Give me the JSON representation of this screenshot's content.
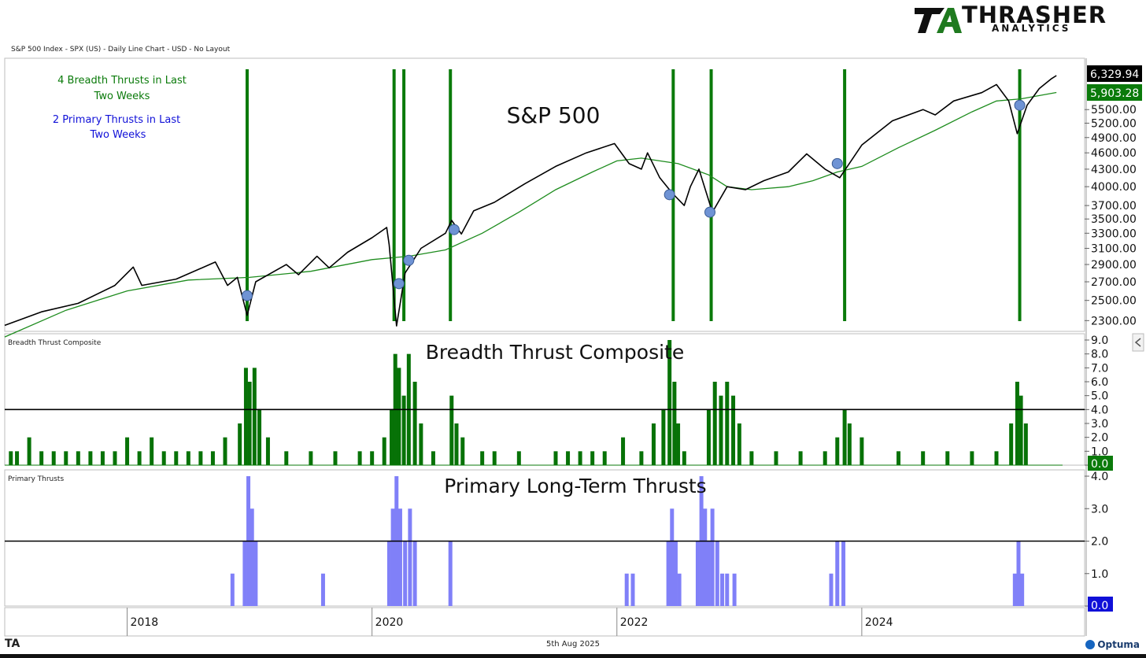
{
  "branding": {
    "logo_letters": "TA",
    "name": "THRASHER",
    "subtitle": "ANALYTICS",
    "footer_logo": "TA",
    "software": "Optuma"
  },
  "header": {
    "chart_info": "S&P 500 Index - SPX (US) - Daily Line Chart - USD - No Layout"
  },
  "footer": {
    "date": "5th Aug 2025"
  },
  "colors": {
    "price": "#000000",
    "ma": "#1e8c1e",
    "thrust_bar": "#077207",
    "signal": "#0a7a0a",
    "primary": "#8080f8",
    "primary_label": "#1010d8",
    "marker": "#6f93d4"
  },
  "chart_data": [
    {
      "type": "line",
      "title": "S&P 500",
      "panel_label": "",
      "annotations": [
        {
          "text": "4 Breadth Thrusts in Last Two Weeks",
          "lines": [
            "4 Breadth Thrusts in Last",
            "Two Weeks"
          ],
          "color": "#0a7a0a"
        },
        {
          "text": "2 Primary Thrusts in Last Two Weeks",
          "lines": [
            "2 Primary Thrusts in Last",
            "Two Weeks"
          ],
          "color": "#1010d8"
        }
      ],
      "series": [
        {
          "name": "S&P 500",
          "color": "#000000",
          "points": [
            [
              2017.0,
              2255
            ],
            [
              2017.3,
              2385
            ],
            [
              2017.6,
              2470
            ],
            [
              2017.9,
              2660
            ],
            [
              2018.05,
              2870
            ],
            [
              2018.12,
              2660
            ],
            [
              2018.4,
              2730
            ],
            [
              2018.72,
              2930
            ],
            [
              2018.82,
              2660
            ],
            [
              2018.9,
              2750
            ],
            [
              2018.98,
              2350
            ],
            [
              2019.05,
              2700
            ],
            [
              2019.3,
              2900
            ],
            [
              2019.4,
              2780
            ],
            [
              2019.55,
              3000
            ],
            [
              2019.65,
              2860
            ],
            [
              2019.8,
              3050
            ],
            [
              2020.0,
              3240
            ],
            [
              2020.12,
              3380
            ],
            [
              2020.14,
              3150
            ],
            [
              2020.2,
              2250
            ],
            [
              2020.27,
              2800
            ],
            [
              2020.4,
              3100
            ],
            [
              2020.6,
              3300
            ],
            [
              2020.65,
              3480
            ],
            [
              2020.73,
              3290
            ],
            [
              2020.83,
              3620
            ],
            [
              2021.0,
              3750
            ],
            [
              2021.25,
              4050
            ],
            [
              2021.5,
              4350
            ],
            [
              2021.75,
              4600
            ],
            [
              2021.98,
              4780
            ],
            [
              2022.1,
              4400
            ],
            [
              2022.2,
              4300
            ],
            [
              2022.25,
              4600
            ],
            [
              2022.35,
              4150
            ],
            [
              2022.45,
              3900
            ],
            [
              2022.55,
              3700
            ],
            [
              2022.6,
              4000
            ],
            [
              2022.67,
              4300
            ],
            [
              2022.78,
              3600
            ],
            [
              2022.9,
              4000
            ],
            [
              2023.05,
              3950
            ],
            [
              2023.2,
              4100
            ],
            [
              2023.4,
              4250
            ],
            [
              2023.55,
              4580
            ],
            [
              2023.7,
              4300
            ],
            [
              2023.82,
              4150
            ],
            [
              2024.0,
              4750
            ],
            [
              2024.25,
              5250
            ],
            [
              2024.5,
              5500
            ],
            [
              2024.6,
              5380
            ],
            [
              2024.75,
              5700
            ],
            [
              2024.98,
              5900
            ],
            [
              2025.1,
              6100
            ],
            [
              2025.2,
              5700
            ],
            [
              2025.27,
              4980
            ],
            [
              2025.35,
              5600
            ],
            [
              2025.45,
              6000
            ],
            [
              2025.55,
              6250
            ],
            [
              2025.59,
              6329.94
            ]
          ]
        },
        {
          "name": "Moving Average",
          "color": "#1e8c1e",
          "points": [
            [
              2017.0,
              2150
            ],
            [
              2017.5,
              2400
            ],
            [
              2018.0,
              2600
            ],
            [
              2018.5,
              2720
            ],
            [
              2019.0,
              2750
            ],
            [
              2019.5,
              2820
            ],
            [
              2020.0,
              2960
            ],
            [
              2020.3,
              3000
            ],
            [
              2020.6,
              3080
            ],
            [
              2020.9,
              3300
            ],
            [
              2021.2,
              3600
            ],
            [
              2021.5,
              3950
            ],
            [
              2021.8,
              4250
            ],
            [
              2022.0,
              4450
            ],
            [
              2022.2,
              4500
            ],
            [
              2022.5,
              4400
            ],
            [
              2022.75,
              4200
            ],
            [
              2022.9,
              4000
            ],
            [
              2023.1,
              3950
            ],
            [
              2023.4,
              4000
            ],
            [
              2023.6,
              4100
            ],
            [
              2023.8,
              4250
            ],
            [
              2024.0,
              4350
            ],
            [
              2024.3,
              4700
            ],
            [
              2024.6,
              5050
            ],
            [
              2024.9,
              5450
            ],
            [
              2025.1,
              5700
            ],
            [
              2025.3,
              5750
            ],
            [
              2025.59,
              5903.28
            ]
          ]
        }
      ],
      "signal_lines_x": [
        2018.98,
        2020.18,
        2020.26,
        2020.64,
        2022.46,
        2022.77,
        2023.86,
        2025.29
      ],
      "markers": [
        [
          2018.98,
          2550
        ],
        [
          2020.22,
          2680
        ],
        [
          2020.3,
          2950
        ],
        [
          2020.67,
          3350
        ],
        [
          2022.43,
          3870
        ],
        [
          2022.76,
          3600
        ],
        [
          2023.8,
          4400
        ],
        [
          2025.29,
          5600
        ]
      ],
      "last_value_labels": [
        "6,329.94",
        "5,903.28"
      ],
      "ytick_labels": [
        "2300.00",
        "2500.00",
        "2700.00",
        "2900.00",
        "3100.00",
        "3300.00",
        "3500.00",
        "3700.00",
        "4000.00",
        "4300.00",
        "4600.00",
        "4900.00",
        "5200.00",
        "5500.00"
      ],
      "yticks": [
        2300,
        2500,
        2700,
        2900,
        3100,
        3300,
        3500,
        3700,
        4000,
        4300,
        4600,
        4900,
        5200,
        5500
      ],
      "ylim": [
        2200,
        6800
      ],
      "scale": "log"
    },
    {
      "type": "bar",
      "title": "Breadth Thrust Composite",
      "panel_label": "Breadth Thrust Composite",
      "color": "#077207",
      "threshold": 4.0,
      "ylim": [
        0,
        9
      ],
      "yticks": [
        0,
        1,
        2,
        3,
        4,
        5,
        6,
        7,
        8,
        9
      ],
      "ytick_labels": [
        "0.0",
        "1.0",
        "2.0",
        "3.0",
        "4.0",
        "5.0",
        "6.0",
        "7.0",
        "8.0",
        "9.0"
      ],
      "last_value_label": "0.0",
      "x": [
        2017.05,
        2017.1,
        2017.2,
        2017.3,
        2017.4,
        2017.5,
        2017.6,
        2017.7,
        2017.8,
        2017.9,
        2018.0,
        2018.1,
        2018.2,
        2018.3,
        2018.4,
        2018.5,
        2018.6,
        2018.7,
        2018.8,
        2018.92,
        2018.97,
        2019.0,
        2019.04,
        2019.08,
        2019.15,
        2019.3,
        2019.5,
        2019.7,
        2019.9,
        2020.0,
        2020.1,
        2020.16,
        2020.19,
        2020.22,
        2020.26,
        2020.3,
        2020.35,
        2020.4,
        2020.5,
        2020.65,
        2020.69,
        2020.74,
        2020.9,
        2021.0,
        2021.2,
        2021.5,
        2021.6,
        2021.7,
        2021.8,
        2021.9,
        2022.05,
        2022.2,
        2022.3,
        2022.38,
        2022.43,
        2022.47,
        2022.5,
        2022.55,
        2022.75,
        2022.8,
        2022.85,
        2022.9,
        2022.95,
        2023.0,
        2023.1,
        2023.3,
        2023.5,
        2023.7,
        2023.8,
        2023.86,
        2023.9,
        2024.0,
        2024.3,
        2024.5,
        2024.7,
        2024.9,
        2025.1,
        2025.22,
        2025.27,
        2025.3,
        2025.34
      ],
      "values": [
        1,
        1,
        2,
        1,
        1,
        1,
        1,
        1,
        1,
        1,
        2,
        1,
        2,
        1,
        1,
        1,
        1,
        1,
        2,
        3,
        7,
        6,
        7,
        4,
        2,
        1,
        1,
        1,
        1,
        1,
        2,
        4,
        8,
        7,
        5,
        8,
        6,
        3,
        1,
        5,
        3,
        2,
        1,
        1,
        1,
        1,
        1,
        1,
        1,
        1,
        2,
        1,
        3,
        4,
        9,
        6,
        3,
        1,
        4,
        6,
        5,
        6,
        5,
        3,
        1,
        1,
        1,
        1,
        2,
        4,
        3,
        2,
        1,
        1,
        1,
        1,
        1,
        3,
        6,
        5,
        3
      ]
    },
    {
      "type": "bar",
      "title": "Primary Long-Term Thrusts",
      "panel_label": "Primary Thrusts",
      "color": "#8080f8",
      "threshold": 2.0,
      "ylim": [
        0,
        4
      ],
      "yticks": [
        0,
        1,
        2,
        3,
        4
      ],
      "ytick_labels": [
        "0.0",
        "1.0",
        "2.0",
        "3.0",
        "4.0"
      ],
      "last_value_label": "0.0",
      "x": [
        2018.86,
        2018.96,
        2018.99,
        2019.02,
        2019.05,
        2019.6,
        2020.14,
        2020.17,
        2020.2,
        2020.23,
        2020.27,
        2020.31,
        2020.35,
        2020.64,
        2022.08,
        2022.13,
        2022.42,
        2022.45,
        2022.48,
        2022.51,
        2022.66,
        2022.69,
        2022.72,
        2022.75,
        2022.78,
        2022.82,
        2022.86,
        2022.9,
        2022.96,
        2023.75,
        2023.8,
        2023.85,
        2025.25,
        2025.28,
        2025.31
      ],
      "values": [
        1,
        2,
        4,
        3,
        2,
        1,
        2,
        3,
        4,
        3,
        2,
        3,
        2,
        2,
        1,
        1,
        2,
        3,
        2,
        1,
        2,
        4,
        3,
        2,
        3,
        2,
        1,
        1,
        1,
        1,
        2,
        2,
        1,
        2,
        1
      ]
    }
  ],
  "x_axis": {
    "ticks": [
      2018,
      2020,
      2022,
      2024
    ],
    "labels": [
      "2018",
      "2020",
      "2022",
      "2024"
    ]
  }
}
